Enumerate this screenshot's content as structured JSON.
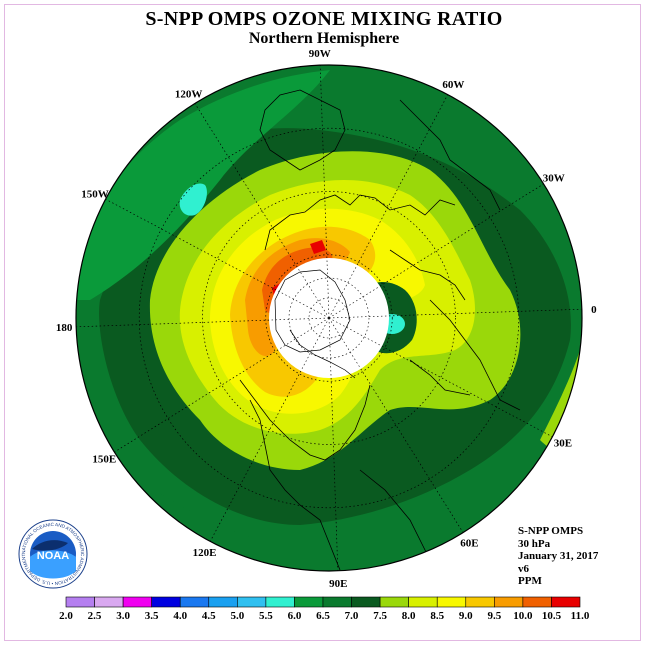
{
  "header": {
    "title": "S-NPP OMPS OZONE MIXING RATIO",
    "subtitle": "Northern Hemisphere"
  },
  "longitude_labels": [
    "90E",
    "60E",
    "30E",
    "0",
    "30W",
    "60W",
    "90W",
    "120W",
    "150W",
    "180",
    "150E",
    "120E"
  ],
  "info": {
    "instrument": "S-NPP OMPS",
    "level": "30 hPa",
    "date": "January 31, 2017",
    "version": "v6",
    "units": "PPM"
  },
  "logo": {
    "text": "NOAA",
    "ring_text": "NATIONAL OCEANIC AND ATMOSPHERIC ADMINISTRATION • U.S. DEPARTMENT OF COMMERCE"
  },
  "colorbar": {
    "ticks": [
      "2.0",
      "2.5",
      "3.0",
      "3.5",
      "4.0",
      "4.5",
      "5.0",
      "5.5",
      "6.0",
      "6.5",
      "7.0",
      "7.5",
      "8.0",
      "8.5",
      "9.0",
      "9.5",
      "10.0",
      "10.5",
      "11.0"
    ],
    "colors": [
      "#b57ff0",
      "#d9a8f0",
      "#f000f0",
      "#0000e0",
      "#1a78f0",
      "#1aa0f0",
      "#30c0f0",
      "#30f0d0",
      "#0a9a3a",
      "#0a7a2e",
      "#0a5a20",
      "#9ad80a",
      "#d8f000",
      "#f8f800",
      "#f8c800",
      "#f89c00",
      "#f06000",
      "#e80000",
      "#8a4a2a"
    ]
  },
  "map_colors": {
    "level_6_0": "#0a9a3a",
    "level_6_5": "#0a7a2e",
    "level_7_0": "#0a5a20",
    "level_7_5": "#9ad80a",
    "level_8_0": "#d8f000",
    "level_8_5": "#f8f800",
    "level_9_0": "#f8c800",
    "level_9_5": "#f89c00",
    "level_10_0": "#f06000",
    "level_10_5": "#e80000",
    "level_5_5": "#30f0d0"
  }
}
